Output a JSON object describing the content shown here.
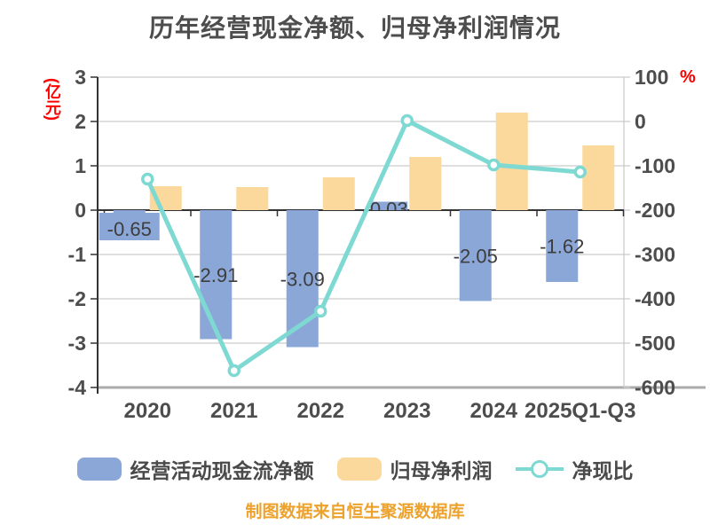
{
  "page": {
    "footer": "制图数据来自恒生聚源数据库"
  },
  "chart_data": {
    "type": "bar",
    "subtype": "grouped bars with overlay line on secondary axis",
    "title": "历年经营现金净额、归母净利润情况",
    "categories": [
      "2020",
      "2021",
      "2022",
      "2023",
      "2024",
      "2025Q1-Q3"
    ],
    "left_axis": {
      "caption": "(亿元)",
      "ticks": [
        "3",
        "2",
        "1",
        "0",
        "-1",
        "-2",
        "-3",
        "-4"
      ],
      "max": 3,
      "min": -4,
      "caption_color": "#fe0000"
    },
    "right_axis": {
      "caption": "%",
      "ticks": [
        "100",
        "0",
        "-100",
        "-200",
        "-300",
        "-400",
        "-500",
        "-600"
      ],
      "max": 100,
      "min": -600,
      "caption_color": "#fe0000"
    },
    "series": [
      {
        "name": "经营活动现金流净额",
        "type": "bar",
        "axis": "left",
        "color": "#8ba7d8",
        "values": [
          -0.65,
          -2.91,
          -3.09,
          0.03,
          -2.05,
          -1.62
        ],
        "labels": [
          "-0.65",
          "-2.91",
          "-3.09",
          "0.03",
          "-2.05",
          "-1.62"
        ]
      },
      {
        "name": "归母净利润",
        "type": "bar",
        "axis": "left",
        "color": "#fbd89b",
        "values": [
          0.54,
          0.52,
          0.74,
          1.2,
          2.2,
          1.46
        ]
      },
      {
        "name": "净现比",
        "type": "line",
        "axis": "right",
        "color": "#7ed9d3",
        "marker": "circle-white-fill",
        "values": [
          -130,
          -562,
          -428,
          2,
          -98,
          -114
        ]
      }
    ],
    "grid": "horizontal gridlines on",
    "legend_position": "bottom",
    "style_colors": {
      "grid_line": "#cccccc",
      "zero_axis": "#333333",
      "bottom_axis": "#ababab",
      "tick_text": "#4d4d4d",
      "bar_label_text": "#3d3d3d",
      "title_text": "#4d4d4d"
    }
  }
}
